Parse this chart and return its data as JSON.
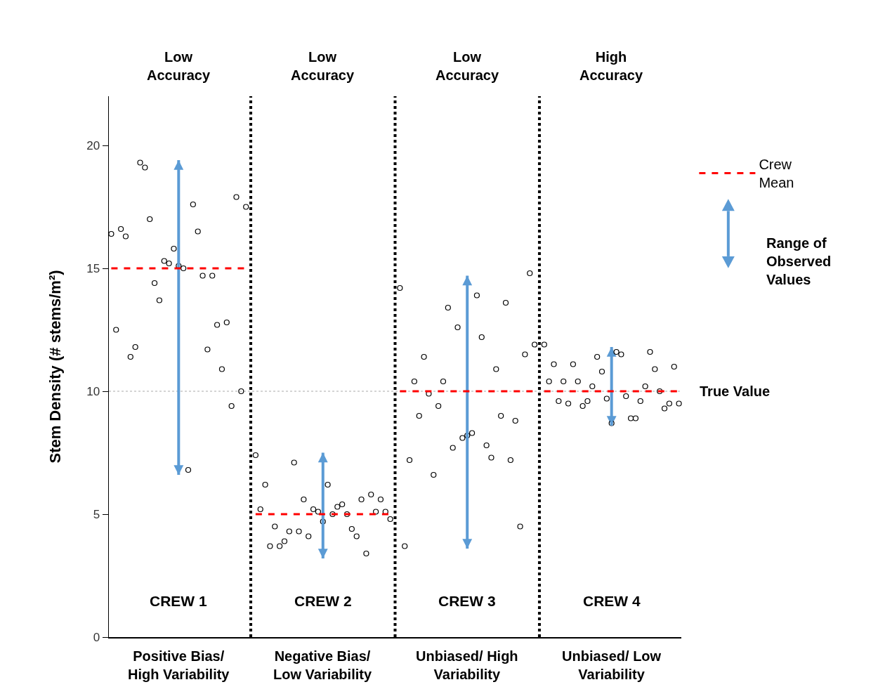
{
  "chart_data": {
    "type": "scatter",
    "ylabel": "Stem Density (# stems/m²)",
    "categories": [
      null,
      null,
      null,
      null,
      null,
      null,
      null,
      null,
      null,
      null,
      null,
      null,
      null,
      null,
      null,
      null,
      null,
      null,
      null,
      null,
      null,
      null,
      null,
      null,
      null,
      null,
      null,
      null,
      null,
      null,
      null,
      null,
      null,
      null,
      null,
      null,
      null,
      null,
      null,
      null,
      null,
      null,
      null,
      null,
      null,
      null,
      null,
      null,
      null,
      null,
      null,
      null,
      null,
      null,
      null,
      null,
      null,
      null,
      null,
      null,
      null,
      null,
      null,
      null,
      null,
      null,
      null,
      null,
      null,
      null,
      null,
      null,
      null,
      null,
      null,
      null,
      null,
      null,
      null,
      null,
      null,
      null,
      null,
      null,
      null,
      null,
      null,
      null,
      null,
      null,
      null,
      null,
      null,
      null,
      null,
      null,
      null,
      null,
      null,
      null,
      null,
      null,
      null,
      null,
      null,
      null,
      null,
      null,
      null,
      null,
      null,
      null,
      null,
      null,
      null,
      null,
      null,
      null,
      null
    ],
    "series": [
      {
        "color": "#000000",
        "values": [
          16.4,
          12.5,
          16.6,
          16.3,
          11.4,
          11.8,
          19.3,
          19.1,
          17.0,
          14.4,
          13.7,
          15.3,
          15.2,
          15.8,
          15.1,
          15.0,
          6.8,
          17.6,
          16.5,
          14.7,
          11.7,
          14.7,
          12.7,
          10.9,
          12.8,
          9.4,
          17.9,
          10.0,
          17.5,
          null,
          7.4,
          5.2,
          6.2,
          3.7,
          4.5,
          3.7,
          3.9,
          4.3,
          7.1,
          4.3,
          5.6,
          4.1,
          5.2,
          5.1,
          4.7,
          6.2,
          5.0,
          5.3,
          5.4,
          5.0,
          4.4,
          4.1,
          5.6,
          3.4,
          5.8,
          5.1,
          5.6,
          5.1,
          4.8,
          null,
          14.2,
          3.7,
          7.2,
          10.4,
          9.0,
          11.4,
          9.9,
          6.6,
          9.4,
          10.4,
          13.4,
          7.7,
          12.6,
          8.1,
          8.2,
          8.3,
          13.9,
          12.2,
          7.8,
          7.3,
          10.9,
          9.0,
          13.6,
          7.2,
          8.8,
          4.5,
          11.5,
          14.8,
          11.9,
          null,
          11.9,
          10.4,
          11.1,
          9.6,
          10.4,
          9.5,
          11.1,
          10.4,
          9.4,
          9.6,
          10.2,
          11.4,
          10.8,
          9.7,
          8.7,
          11.6,
          11.5,
          9.8,
          8.9,
          8.9,
          9.6,
          10.2,
          11.6,
          10.9,
          10.0,
          9.3,
          9.5,
          11.0,
          9.5
        ]
      },
      {
        "name": "Crew Mean",
        "type": "line",
        "color": "#ff0000",
        "line_style": "dashed",
        "marker": "none",
        "values": [
          15,
          15,
          15,
          15,
          15,
          15,
          15,
          15,
          15,
          15,
          15,
          15,
          15,
          15,
          15,
          15,
          15,
          15,
          15,
          15,
          15,
          15,
          15,
          15,
          15,
          15,
          15,
          15,
          15,
          null,
          5,
          5,
          5,
          5,
          5,
          5,
          5,
          5,
          5,
          5,
          5,
          5,
          5,
          5,
          5,
          5,
          5,
          5,
          5,
          5,
          5,
          5,
          5,
          5,
          5,
          5,
          5,
          5,
          5,
          null,
          10,
          10,
          10,
          10,
          10,
          10,
          10,
          10,
          10,
          10,
          10,
          10,
          10,
          10,
          10,
          10,
          10,
          10,
          10,
          10,
          10,
          10,
          10,
          10,
          10,
          10,
          10,
          10,
          10,
          null,
          10,
          10,
          10,
          10,
          10,
          10,
          10,
          10,
          10,
          10,
          10,
          10,
          10,
          10,
          10,
          10,
          10,
          10,
          10,
          10,
          10,
          10,
          10,
          10,
          10,
          10,
          10,
          10,
          10
        ],
        "errors": [
          null,
          null,
          null,
          null,
          null,
          null,
          null,
          null,
          null,
          null,
          null,
          null,
          null,
          null,
          [
            6.6,
            19.4
          ],
          null,
          null,
          null,
          null,
          null,
          null,
          null,
          null,
          null,
          null,
          null,
          null,
          null,
          null,
          null,
          null,
          null,
          null,
          null,
          null,
          null,
          null,
          null,
          null,
          null,
          null,
          null,
          null,
          null,
          [
            3.2,
            7.5
          ],
          null,
          null,
          null,
          null,
          null,
          null,
          null,
          null,
          null,
          null,
          null,
          null,
          null,
          null,
          null,
          null,
          null,
          null,
          null,
          null,
          null,
          null,
          null,
          null,
          null,
          null,
          null,
          null,
          null,
          [
            3.6,
            14.7
          ],
          null,
          null,
          null,
          null,
          null,
          null,
          null,
          null,
          null,
          null,
          null,
          null,
          null,
          null,
          null,
          null,
          null,
          null,
          null,
          null,
          null,
          null,
          null,
          null,
          null,
          null,
          null,
          null,
          null,
          [
            8.6,
            11.8
          ],
          null,
          null,
          null,
          null,
          null,
          null,
          null,
          null,
          null,
          null,
          null,
          null,
          null,
          null
        ]
      }
    ],
    "ylim": [
      0,
      22
    ],
    "yticks": [
      0,
      5,
      10,
      15,
      20
    ],
    "grid": false,
    "tick_labels": "y",
    "marker": "circle",
    "legend": "right",
    "ref_lines": [
      {
        "axis": "y",
        "value": 10,
        "label": "True Value",
        "color": "#aaaaaa",
        "line_style": "dotted"
      }
    ],
    "annotations": [
      "Low Accuracy",
      "Low Accuracy",
      "Low Accuracy",
      "High Accuracy",
      "CREW 1",
      "CREW 2",
      "CREW 3",
      "CREW 4",
      "Positive Bias/ High Variability",
      "Negative Bias/ Low Variability",
      "Unbiased/ High Variability",
      "Unbiased/ Low Variability",
      "Range of Observed Values"
    ]
  }
}
